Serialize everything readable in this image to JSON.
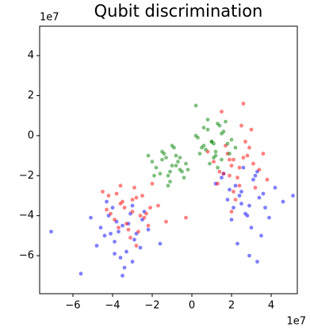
{
  "chart_data": {
    "type": "scatter",
    "title": "Qubit discrimination",
    "x_offset_label": "1e7",
    "y_offset_label": "1e7",
    "xlim": [
      -7.68,
      5.32
    ],
    "ylim": [
      -7.9,
      5.47
    ],
    "xticks": [
      {
        "value": -6,
        "label": "−6"
      },
      {
        "value": -4,
        "label": "−4"
      },
      {
        "value": -2,
        "label": "−2"
      },
      0,
      2,
      4
    ],
    "yticks": [
      {
        "value": -6,
        "label": "−6"
      },
      {
        "value": -4,
        "label": "−4"
      },
      {
        "value": -2,
        "label": "−2"
      },
      0,
      2,
      4
    ],
    "grid": false,
    "series": [
      {
        "color": "#0000ff",
        "x": [
          -3.5,
          -4.2,
          -2.8,
          -3.9,
          -3.1,
          -4.6,
          -2.5,
          -3.3,
          -4.0,
          -3.7,
          -2.9,
          -5.1,
          -3.6,
          -4.4,
          -2.2,
          -3.0,
          -3.8,
          -4.8,
          -3.4,
          -2.6,
          -7.1,
          -5.6,
          -3.2,
          -4.1,
          -2.4,
          -3.9,
          -1.6,
          -4.3,
          -3.0,
          -3.5,
          2.5,
          3.1,
          1.8,
          2.9,
          2.2,
          3.6,
          1.5,
          2.7,
          3.3,
          2.0,
          4.2,
          2.4,
          1.2,
          3.0,
          2.6,
          4.6,
          2.1,
          3.4,
          1.9,
          2.8,
          3.9,
          2.3,
          1.6,
          3.2,
          2.5,
          3.7,
          2.9,
          5.1,
          3.5,
          3.3
        ],
        "values": [
          -4.5,
          -4.0,
          -4.9,
          -5.3,
          -3.9,
          -4.6,
          -4.2,
          -5.8,
          -3.6,
          -4.8,
          -5.2,
          -4.1,
          -6.1,
          -5.0,
          -4.7,
          -3.5,
          -4.3,
          -5.5,
          -6.6,
          -5.6,
          -4.8,
          -6.9,
          -4.4,
          -4.9,
          -3.8,
          -5.9,
          -5.4,
          -3.3,
          -6.3,
          -7.0,
          -2.8,
          -2.2,
          -3.2,
          -3.5,
          -2.5,
          -2.9,
          -2.1,
          -3.9,
          -1.8,
          -4.2,
          -2.6,
          -3.0,
          -2.4,
          -4.6,
          -1.6,
          -3.3,
          -3.6,
          -3.1,
          -2.7,
          -4.0,
          -4.1,
          -5.4,
          -1.9,
          -2.0,
          -3.4,
          -3.6,
          -6.0,
          -3.0,
          -5.0,
          -6.3
        ]
      },
      {
        "color": "#ff0000",
        "x": [
          -3.0,
          -3.6,
          -2.4,
          -3.3,
          -2.8,
          -4.1,
          -2.1,
          -3.2,
          -3.8,
          -2.6,
          -3.5,
          -2.2,
          -4.3,
          -2.9,
          -3.1,
          -1.7,
          -3.7,
          -2.5,
          -3.4,
          -4.5,
          -2.7,
          -3.9,
          -2.0,
          -3.0,
          -1.3,
          -4.2,
          -2.8,
          -3.6,
          -2.3,
          -0.3,
          2.0,
          2.6,
          1.4,
          2.3,
          1.8,
          3.1,
          1.1,
          2.4,
          2.9,
          1.6,
          3.4,
          2.1,
          0.8,
          2.7,
          1.9,
          3.8,
          2.2,
          1.3,
          2.8,
          2.5,
          3.2,
          1.7,
          2.0,
          3.6,
          1.5,
          2.4,
          3.0,
          2.6,
          1.9,
          2.1
        ],
        "values": [
          -3.8,
          -3.4,
          -4.1,
          -4.4,
          -3.1,
          -3.9,
          -3.6,
          -4.7,
          -2.9,
          -4.0,
          -3.3,
          -4.5,
          -3.7,
          -2.6,
          -5.1,
          -3.5,
          -4.6,
          -3.0,
          -3.6,
          -2.8,
          -4.8,
          -4.2,
          -2.4,
          -3.2,
          -4.3,
          -3.0,
          -5.5,
          -2.5,
          -3.9,
          -4.1,
          -1.5,
          -1.1,
          -1.8,
          -2.1,
          -0.9,
          -1.4,
          -1.3,
          -2.5,
          -0.6,
          -1.9,
          -1.7,
          -2.8,
          -0.8,
          -0.3,
          -1.2,
          -2.2,
          -3.2,
          -2.4,
          -1.0,
          0.5,
          -2.6,
          -0.5,
          -3.8,
          -0.9,
          1.2,
          -1.6,
          0.3,
          1.6,
          -2.0,
          -1.2
        ]
      },
      {
        "color": "#008000",
        "x": [
          -1.0,
          -1.5,
          -0.5,
          -1.2,
          -0.8,
          -1.8,
          -0.3,
          -1.1,
          -1.4,
          -0.6,
          -2.0,
          -0.9,
          -1.3,
          -0.4,
          -1.6,
          -0.7,
          -1.0,
          -2.2,
          -0.2,
          -1.2,
          -0.8,
          -1.5,
          -1.1,
          -0.6,
          -1.9,
          1.0,
          1.5,
          0.5,
          1.2,
          0.8,
          1.8,
          0.3,
          1.1,
          1.4,
          0.6,
          2.0,
          0.9,
          1.3,
          0.4,
          1.6,
          0.7,
          1.0,
          2.2,
          0.2,
          1.2,
          0.8,
          1.5,
          1.1,
          0.6,
          1.9,
          0.2,
          1.7,
          1.3
        ],
        "values": [
          -1.5,
          -1.2,
          -1.8,
          -2.0,
          -1.0,
          -1.6,
          -1.4,
          -2.3,
          -0.9,
          -1.7,
          -1.3,
          -0.6,
          -1.1,
          -2.1,
          -1.9,
          -1.3,
          -0.5,
          -1.0,
          -1.7,
          -2.5,
          -1.5,
          -0.8,
          -1.8,
          -1.1,
          -2.0,
          -0.3,
          0.1,
          -0.6,
          -0.8,
          0.3,
          -0.4,
          -0.1,
          -1.1,
          0.5,
          -0.5,
          -0.2,
          -1.4,
          0.6,
          -0.9,
          0.2,
          -0.7,
          -0.3,
          -0.6,
          0.0,
          -1.0,
          0.8,
          -1.2,
          -0.4,
          0.4,
          -0.9,
          1.5,
          0.7,
          -1.6
        ]
      }
    ]
  }
}
